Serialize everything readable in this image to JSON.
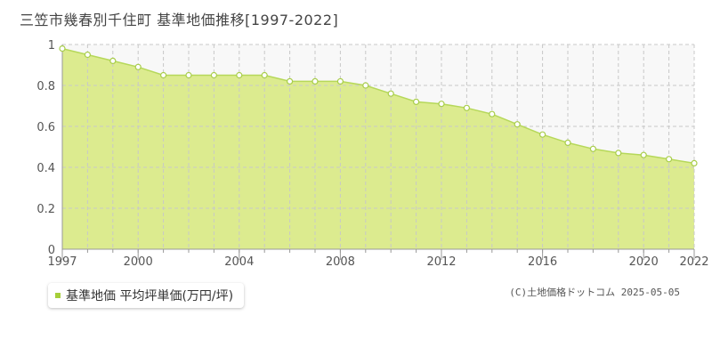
{
  "header": {
    "title": "三笠市幾春別千住町 基準地価推移[1997-2022]"
  },
  "legend": {
    "label": "基準地価 平均坪単価(万円/坪)"
  },
  "footer": {
    "copyright": "(C)土地価格ドットコム 2025-05-05"
  },
  "colors": {
    "area_fill": "#dceb8f",
    "line": "#b6d85a",
    "marker_stroke": "#a8cd4a",
    "grid": "#c8c8c8",
    "plot_bg": "#f8f8f8",
    "legend_swatch": "#a6cf3a"
  },
  "chart_data": {
    "type": "area",
    "title": "三笠市幾春別千住町 基準地価推移[1997-2022]",
    "xlabel": "",
    "ylabel": "",
    "xlim": [
      1997,
      2022
    ],
    "ylim": [
      0,
      1
    ],
    "y_ticks": [
      {
        "value": 0,
        "label": "0"
      },
      {
        "value": 0.2,
        "label": "0.2"
      },
      {
        "value": 0.4,
        "label": "0.4"
      },
      {
        "value": 0.6,
        "label": "0.6"
      },
      {
        "value": 0.8,
        "label": "0.8"
      },
      {
        "value": 1,
        "label": "1"
      }
    ],
    "x_tick_labels": [
      {
        "value": 1997,
        "label": "1997"
      },
      {
        "value": 2000,
        "label": "2000"
      },
      {
        "value": 2004,
        "label": "2004"
      },
      {
        "value": 2008,
        "label": "2008"
      },
      {
        "value": 2012,
        "label": "2012"
      },
      {
        "value": 2016,
        "label": "2016"
      },
      {
        "value": 2020,
        "label": "2020"
      },
      {
        "value": 2022,
        "label": "2022"
      }
    ],
    "grid": true,
    "legend_position": "bottom-left",
    "series": [
      {
        "name": "基準地価 平均坪単価(万円/坪)",
        "x": [
          1997,
          1998,
          1999,
          2000,
          2001,
          2002,
          2003,
          2004,
          2005,
          2006,
          2007,
          2008,
          2009,
          2010,
          2011,
          2012,
          2013,
          2014,
          2015,
          2016,
          2017,
          2018,
          2019,
          2020,
          2021,
          2022
        ],
        "y": [
          0.98,
          0.95,
          0.92,
          0.89,
          0.85,
          0.85,
          0.85,
          0.85,
          0.85,
          0.82,
          0.82,
          0.82,
          0.8,
          0.76,
          0.72,
          0.71,
          0.69,
          0.66,
          0.61,
          0.56,
          0.52,
          0.49,
          0.47,
          0.46,
          0.44,
          0.42
        ]
      }
    ]
  }
}
